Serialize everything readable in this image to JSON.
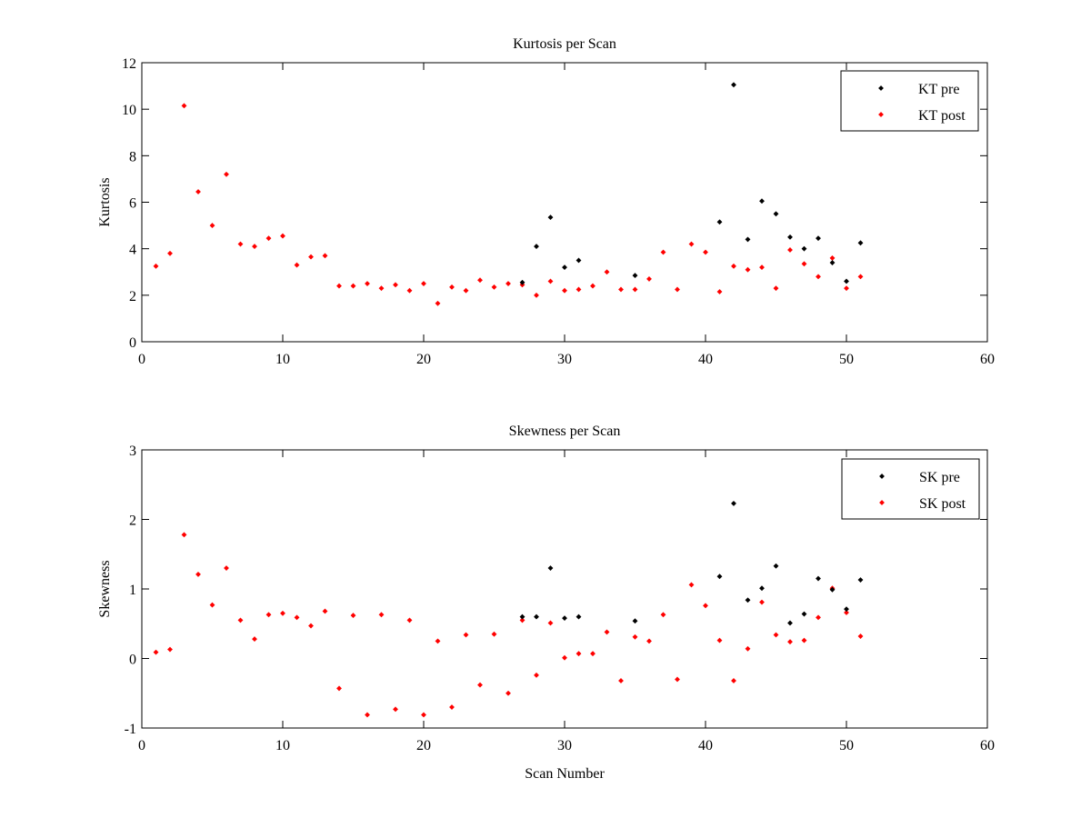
{
  "chart_data": [
    {
      "type": "scatter",
      "title": "Kurtosis per Scan",
      "xlabel": "",
      "ylabel": "Kurtosis",
      "xlim": [
        0,
        60
      ],
      "ylim": [
        0,
        12
      ],
      "xticks": [
        0,
        10,
        20,
        30,
        40,
        50,
        60
      ],
      "yticks": [
        0,
        2,
        4,
        6,
        8,
        10,
        12
      ],
      "grid": false,
      "legend_position": "top-right",
      "series": [
        {
          "name": "KT pre",
          "color": "#000000",
          "x": [
            27,
            28,
            29,
            30,
            31,
            35,
            41,
            42,
            43,
            44,
            45,
            46,
            47,
            48,
            49,
            50,
            51
          ],
          "y": [
            2.55,
            4.1,
            5.35,
            3.2,
            3.5,
            2.85,
            5.15,
            11.05,
            4.4,
            6.05,
            5.5,
            4.5,
            4.0,
            4.45,
            3.4,
            2.6,
            4.25
          ]
        },
        {
          "name": "KT post",
          "color": "#ff0000",
          "x": [
            1,
            2,
            3,
            4,
            5,
            6,
            7,
            8,
            9,
            10,
            11,
            12,
            13,
            14,
            15,
            16,
            17,
            18,
            19,
            20,
            21,
            22,
            23,
            24,
            25,
            26,
            27,
            28,
            29,
            30,
            31,
            32,
            33,
            34,
            35,
            36,
            37,
            38,
            39,
            40,
            41,
            42,
            43,
            44,
            45,
            46,
            47,
            48,
            49,
            50,
            51
          ],
          "y": [
            3.25,
            3.8,
            10.15,
            6.45,
            5.0,
            7.2,
            4.2,
            4.1,
            4.45,
            4.55,
            3.3,
            3.65,
            3.7,
            2.4,
            2.4,
            2.5,
            2.3,
            2.45,
            2.2,
            2.5,
            1.65,
            2.35,
            2.2,
            2.65,
            2.35,
            2.5,
            2.45,
            2.0,
            2.6,
            2.2,
            2.25,
            2.4,
            3.0,
            2.25,
            2.25,
            2.7,
            3.85,
            2.25,
            4.2,
            3.85,
            2.15,
            3.25,
            3.1,
            3.2,
            2.3,
            3.95,
            3.35,
            2.8,
            3.6,
            2.3,
            2.8
          ]
        }
      ]
    },
    {
      "type": "scatter",
      "title": "Skewness per Scan",
      "xlabel": "Scan Number",
      "ylabel": "Skewness",
      "xlim": [
        0,
        60
      ],
      "ylim": [
        -1,
        3
      ],
      "xticks": [
        0,
        10,
        20,
        30,
        40,
        50,
        60
      ],
      "yticks": [
        -1,
        0,
        1,
        2,
        3
      ],
      "grid": false,
      "legend_position": "top-right",
      "series": [
        {
          "name": "SK pre",
          "color": "#000000",
          "x": [
            27,
            28,
            29,
            30,
            31,
            35,
            41,
            42,
            43,
            44,
            45,
            46,
            47,
            48,
            49,
            50,
            51
          ],
          "y": [
            0.6,
            0.6,
            1.3,
            0.58,
            0.6,
            0.54,
            1.18,
            2.23,
            0.84,
            1.01,
            1.33,
            0.51,
            0.64,
            1.15,
            0.99,
            0.71,
            1.13
          ]
        },
        {
          "name": "SK post",
          "color": "#ff0000",
          "x": [
            1,
            2,
            3,
            4,
            5,
            6,
            7,
            8,
            9,
            10,
            11,
            12,
            13,
            14,
            15,
            16,
            17,
            18,
            19,
            20,
            21,
            22,
            23,
            24,
            25,
            26,
            27,
            28,
            29,
            30,
            31,
            32,
            33,
            34,
            35,
            36,
            37,
            38,
            39,
            40,
            41,
            42,
            43,
            44,
            45,
            46,
            47,
            48,
            49,
            50,
            51
          ],
          "y": [
            0.09,
            0.13,
            1.78,
            1.21,
            0.77,
            1.3,
            0.55,
            0.28,
            0.63,
            0.65,
            0.59,
            0.47,
            0.68,
            -0.43,
            0.62,
            -0.81,
            0.63,
            -0.73,
            0.55,
            -0.81,
            0.25,
            -0.7,
            0.34,
            -0.38,
            0.35,
            -0.5,
            0.55,
            -0.24,
            0.51,
            0.01,
            0.07,
            0.07,
            0.38,
            -0.32,
            0.31,
            0.25,
            0.63,
            -0.3,
            1.06,
            0.76,
            0.26,
            -0.32,
            0.14,
            0.81,
            0.34,
            0.24,
            0.26,
            0.59,
            1.01,
            0.66,
            0.32
          ]
        }
      ]
    }
  ]
}
